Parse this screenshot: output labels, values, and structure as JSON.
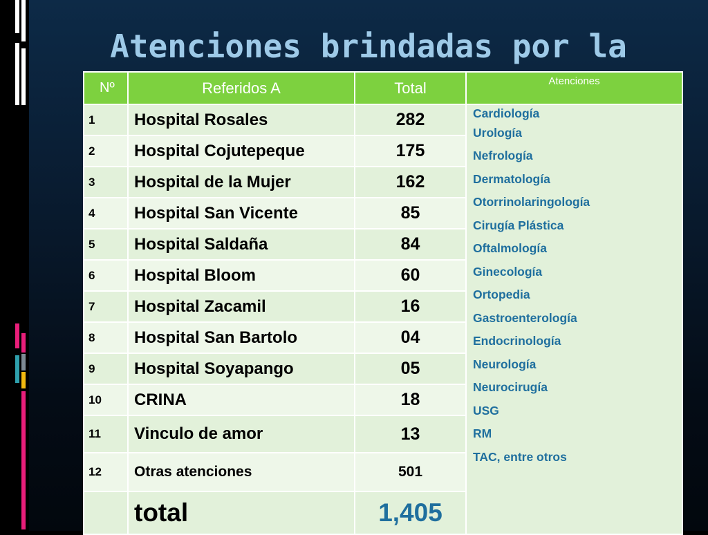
{
  "slide": {
    "title": "Atenciones brindadas por la"
  },
  "colors": {
    "header_green": "#7dd13f",
    "cell_green": "#e2f1da",
    "value_blue": "#1f6f9e",
    "title_blue": "#9ecae8",
    "deco_pink": "#e91e7a",
    "deco_gold": "#f2b90f",
    "deco_teal": "#2fa0ad"
  },
  "table": {
    "headers": {
      "num": "Nº",
      "referidos": "Referidos A",
      "total": "Total",
      "atenciones": "Atenciones"
    },
    "rows": [
      {
        "num": "1",
        "name": "Hospital Rosales",
        "total": "282"
      },
      {
        "num": "2",
        "name": "Hospital Cojutepeque",
        "total": "175"
      },
      {
        "num": "3",
        "name": "Hospital de la Mujer",
        "total": "162"
      },
      {
        "num": "4",
        "name": "Hospital San Vicente",
        "total": "85"
      },
      {
        "num": "5",
        "name": "Hospital Saldaña",
        "total": "84"
      },
      {
        "num": "6",
        "name": "Hospital Bloom",
        "total": "60"
      },
      {
        "num": "7",
        "name": "Hospital Zacamil",
        "total": "16"
      },
      {
        "num": "8",
        "name": "Hospital San Bartolo",
        "total": "04"
      },
      {
        "num": "9",
        "name": "Hospital Soyapango",
        "total": "05"
      },
      {
        "num": "10",
        "name": "CRINA",
        "total": "18"
      },
      {
        "num": "11",
        "name": "Vinculo de amor",
        "total": "13"
      },
      {
        "num": "12",
        "name": "Otras atenciones",
        "total": "501"
      }
    ],
    "services": [
      "Cardiología",
      "Urología",
      "Nefrología",
      "Dermatología",
      "Otorrinolaringología",
      "Cirugía Plástica",
      "Oftalmología",
      "Ginecología",
      "Ortopedia",
      "Gastroenterología",
      "Endocrinología",
      "Neurología",
      "Neurocirugía",
      "USG",
      "RM",
      "TAC, entre otros"
    ],
    "footer": {
      "label": "total",
      "value": "1,405"
    }
  }
}
